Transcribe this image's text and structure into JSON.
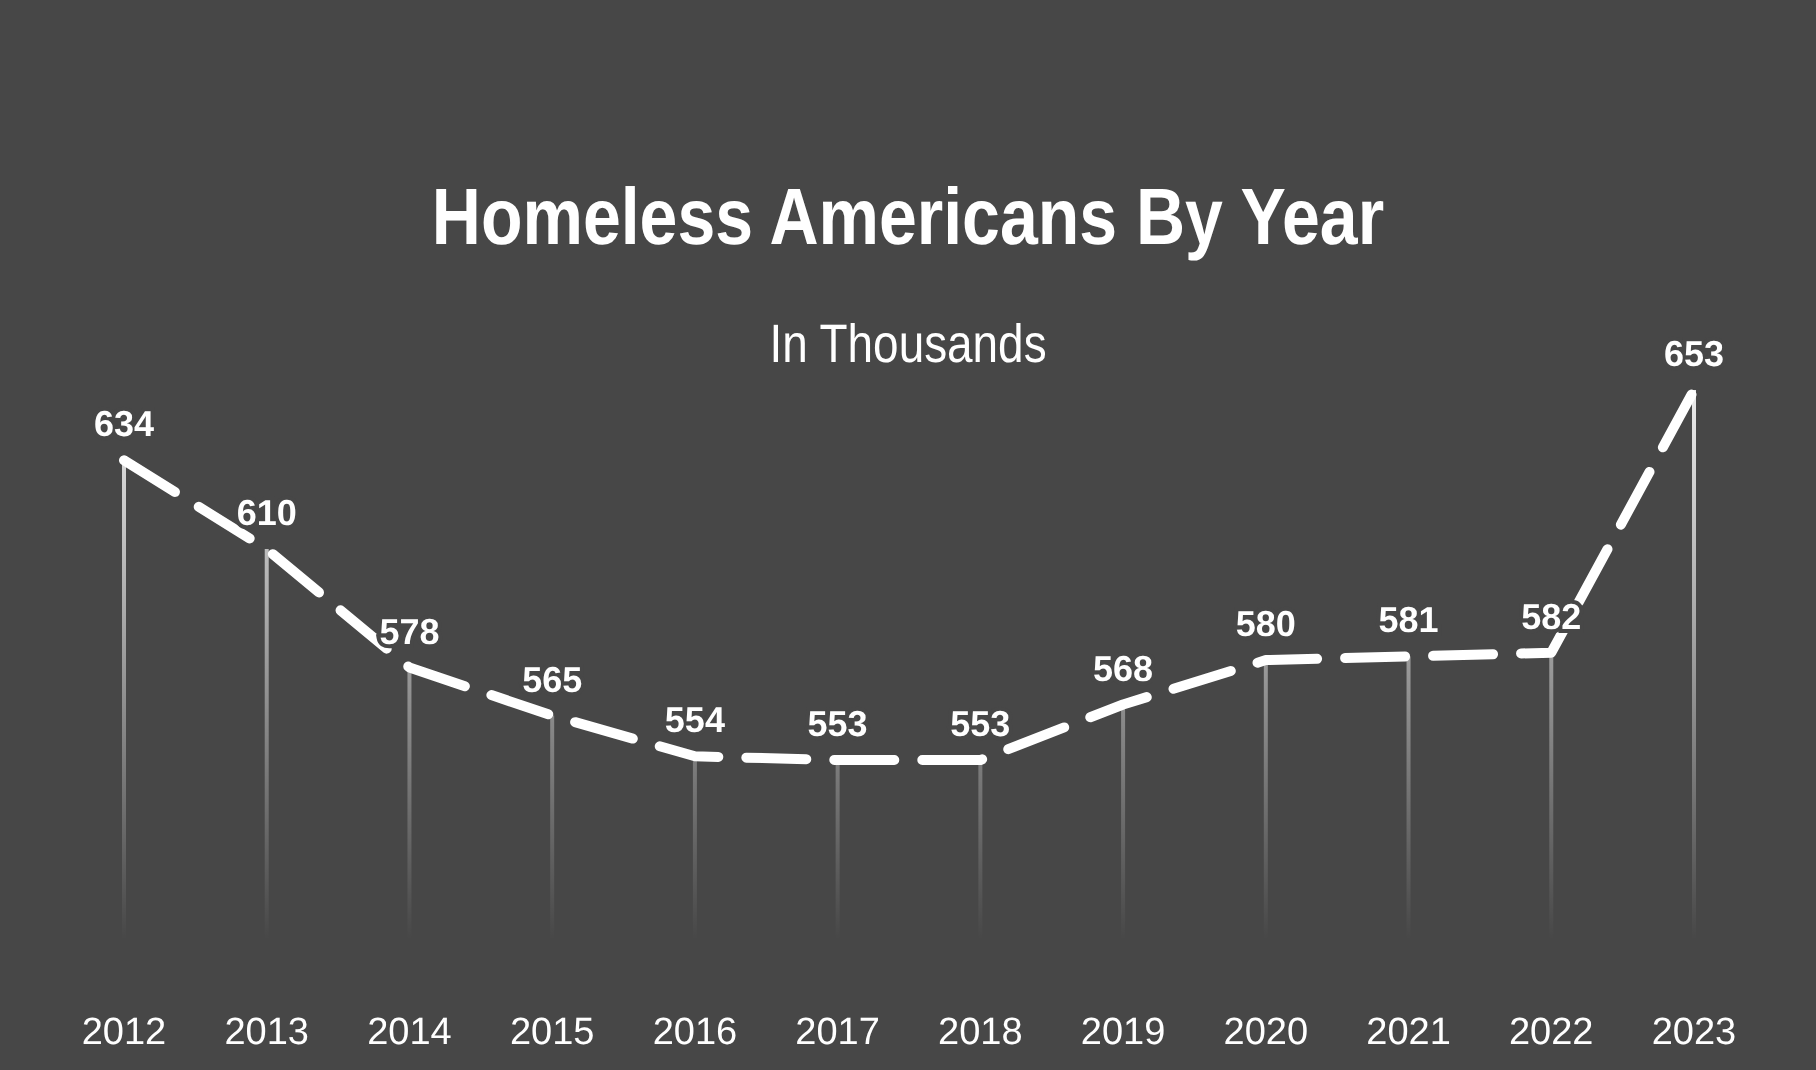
{
  "chart_data": {
    "type": "line",
    "title": "Homeless Americans By Year",
    "subtitle": "In Thousands",
    "categories": [
      "2012",
      "2013",
      "2014",
      "2015",
      "2016",
      "2017",
      "2018",
      "2019",
      "2020",
      "2021",
      "2022",
      "2023"
    ],
    "series": [
      {
        "color": "#ffffff",
        "values": [
          634,
          610,
          578,
          565,
          554,
          553,
          553,
          568,
          580,
          581,
          582,
          653
        ]
      }
    ],
    "data_labels": true,
    "grid": "x",
    "marker": "none",
    "line_style": "dashed"
  }
}
